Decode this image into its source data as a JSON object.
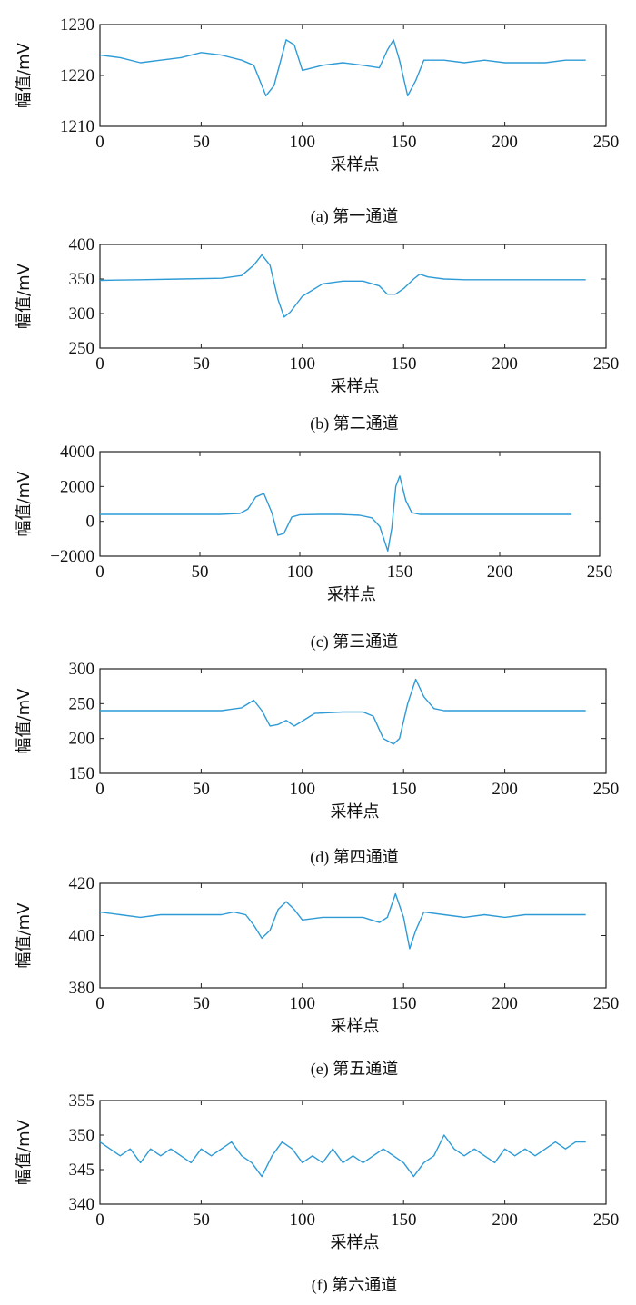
{
  "figure": {
    "colors": {
      "line": "#2f9bd6",
      "axis": "#222222",
      "text": "#111111",
      "background": "#ffffff"
    }
  },
  "chart_data": [
    {
      "type": "line",
      "caption": "(a) 第一通道",
      "xlabel": "采样点",
      "ylabel": "幅值/mV",
      "xlim": [
        0,
        250
      ],
      "ylim": [
        1210,
        1230
      ],
      "xticks": [
        0,
        50,
        100,
        150,
        200,
        250
      ],
      "yticks": [
        1210,
        1220,
        1230
      ],
      "ytick_labels": [
        "1210",
        "1220",
        "1230"
      ],
      "grid": false,
      "series": [
        {
          "x": [
            0,
            10,
            20,
            30,
            40,
            50,
            60,
            70,
            76,
            82,
            86,
            92,
            96,
            100,
            110,
            120,
            130,
            138,
            142,
            145,
            148,
            152,
            156,
            160,
            170,
            180,
            190,
            200,
            210,
            220,
            230,
            240
          ],
          "values": [
            1224,
            1223.5,
            1222.5,
            1223,
            1223.5,
            1224.5,
            1224,
            1223,
            1222,
            1216,
            1218,
            1227,
            1226,
            1221,
            1222,
            1222.5,
            1222,
            1221.5,
            1225,
            1227,
            1223,
            1216,
            1219,
            1223,
            1223,
            1222.5,
            1223,
            1222.5,
            1222.5,
            1222.5,
            1223,
            1223
          ]
        }
      ]
    },
    {
      "type": "line",
      "caption": "(b) 第二通道",
      "xlabel": "采样点",
      "ylabel": "幅值/mV",
      "xlim": [
        0,
        250
      ],
      "ylim": [
        250,
        400
      ],
      "xticks": [
        0,
        50,
        100,
        150,
        200,
        250
      ],
      "yticks": [
        250,
        300,
        350,
        400
      ],
      "ytick_labels": [
        "250",
        "300",
        "350",
        "400"
      ],
      "grid": false,
      "series": [
        {
          "x": [
            0,
            20,
            40,
            60,
            70,
            76,
            80,
            84,
            88,
            91,
            94,
            100,
            110,
            120,
            130,
            138,
            142,
            146,
            150,
            155,
            158,
            162,
            170,
            180,
            200,
            220,
            240
          ],
          "values": [
            348,
            349,
            350,
            351,
            355,
            370,
            385,
            370,
            320,
            295,
            302,
            325,
            343,
            347,
            347,
            340,
            328,
            328,
            336,
            350,
            357,
            353,
            350,
            349,
            349,
            349,
            349
          ]
        }
      ]
    },
    {
      "type": "line",
      "caption": "(c) 第三通道",
      "xlabel": "采样点",
      "ylabel": "幅值/mV",
      "xlim": [
        0,
        250
      ],
      "ylim": [
        -2000,
        4000
      ],
      "xticks": [
        0,
        50,
        100,
        150,
        200,
        250
      ],
      "yticks": [
        -2000,
        0,
        2000,
        4000
      ],
      "ytick_labels": [
        "−2000",
        "0",
        "2000",
        "4000"
      ],
      "grid": false,
      "series": [
        {
          "x": [
            0,
            20,
            40,
            60,
            70,
            74,
            78,
            82,
            86,
            89,
            92,
            96,
            100,
            110,
            120,
            130,
            136,
            140,
            142,
            144,
            146,
            148,
            150,
            153,
            156,
            160,
            180,
            200,
            236
          ],
          "values": [
            400,
            400,
            400,
            400,
            450,
            700,
            1400,
            1600,
            500,
            -800,
            -700,
            250,
            380,
            400,
            400,
            350,
            200,
            -300,
            -1000,
            -1700,
            -400,
            2000,
            2600,
            1200,
            500,
            400,
            400,
            400,
            400
          ]
        }
      ]
    },
    {
      "type": "line",
      "caption": "(d) 第四通道",
      "xlabel": "采样点",
      "ylabel": "幅值/mV",
      "xlim": [
        0,
        250
      ],
      "ylim": [
        150,
        300
      ],
      "xticks": [
        0,
        50,
        100,
        150,
        200,
        250
      ],
      "yticks": [
        150,
        200,
        250,
        300
      ],
      "ytick_labels": [
        "150",
        "200",
        "250",
        "300"
      ],
      "grid": false,
      "series": [
        {
          "x": [
            0,
            20,
            40,
            60,
            70,
            76,
            80,
            84,
            88,
            92,
            96,
            100,
            106,
            120,
            130,
            135,
            140,
            145,
            148,
            152,
            156,
            160,
            165,
            170,
            180,
            200,
            220,
            240
          ],
          "values": [
            240,
            240,
            240,
            240,
            244,
            255,
            240,
            218,
            220,
            226,
            218,
            225,
            236,
            238,
            238,
            232,
            200,
            192,
            200,
            250,
            285,
            260,
            243,
            240,
            240,
            240,
            240,
            240
          ]
        }
      ]
    },
    {
      "type": "line",
      "caption": "(e) 第五通道",
      "xlabel": "采样点",
      "ylabel": "幅值/mV",
      "xlim": [
        0,
        250
      ],
      "ylim": [
        380,
        420
      ],
      "xticks": [
        0,
        50,
        100,
        150,
        200,
        250
      ],
      "yticks": [
        380,
        400,
        420
      ],
      "ytick_labels": [
        "380",
        "400",
        "420"
      ],
      "grid": false,
      "series": [
        {
          "x": [
            0,
            10,
            20,
            30,
            40,
            50,
            60,
            66,
            72,
            76,
            80,
            84,
            88,
            92,
            96,
            100,
            110,
            120,
            130,
            138,
            142,
            146,
            150,
            153,
            156,
            160,
            170,
            180,
            190,
            200,
            210,
            220,
            230,
            240
          ],
          "values": [
            409,
            408,
            407,
            408,
            408,
            408,
            408,
            409,
            408,
            404,
            399,
            402,
            410,
            413,
            410,
            406,
            407,
            407,
            407,
            405,
            407,
            416,
            407,
            395,
            402,
            409,
            408,
            407,
            408,
            407,
            408,
            408,
            408,
            408
          ]
        }
      ]
    },
    {
      "type": "line",
      "caption": "(f) 第六通道",
      "xlabel": "采样点",
      "ylabel": "幅值/mV",
      "xlim": [
        0,
        250
      ],
      "ylim": [
        340,
        355
      ],
      "xticks": [
        0,
        50,
        100,
        150,
        200,
        250
      ],
      "yticks": [
        340,
        345,
        350,
        355
      ],
      "ytick_labels": [
        "340",
        "345",
        "350",
        "355"
      ],
      "grid": false,
      "series": [
        {
          "x": [
            0,
            5,
            10,
            15,
            20,
            25,
            30,
            35,
            40,
            45,
            50,
            55,
            60,
            65,
            70,
            75,
            80,
            85,
            90,
            95,
            100,
            105,
            110,
            115,
            120,
            125,
            130,
            135,
            140,
            145,
            150,
            155,
            160,
            165,
            170,
            175,
            180,
            185,
            190,
            195,
            200,
            205,
            210,
            215,
            220,
            225,
            230,
            235,
            240
          ],
          "values": [
            349,
            348,
            347,
            348,
            346,
            348,
            347,
            348,
            347,
            346,
            348,
            347,
            348,
            349,
            347,
            346,
            344,
            347,
            349,
            348,
            346,
            347,
            346,
            348,
            346,
            347,
            346,
            347,
            348,
            347,
            346,
            344,
            346,
            347,
            350,
            348,
            347,
            348,
            347,
            346,
            348,
            347,
            348,
            347,
            348,
            349,
            348,
            349,
            349
          ]
        }
      ]
    }
  ]
}
